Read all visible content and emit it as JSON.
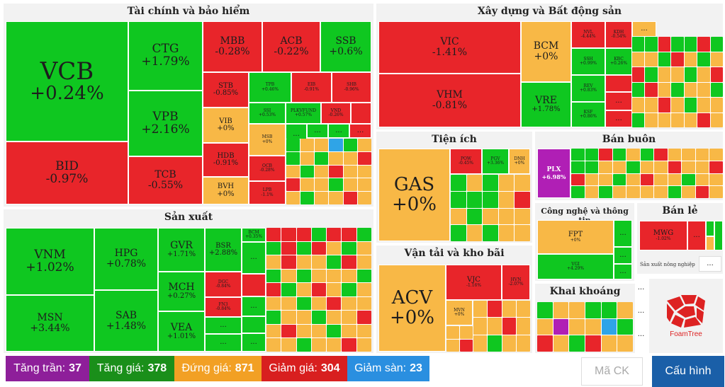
{
  "sectors": {
    "finance": {
      "title": "Tài chính và bảo hiểm",
      "vcb": {
        "t": "VCB",
        "v": "+0.24%"
      },
      "bid": {
        "t": "BID",
        "v": "-0.97%"
      },
      "ctg": {
        "t": "CTG",
        "v": "+1.79%"
      },
      "vpb": {
        "t": "VPB",
        "v": "+2.16%"
      },
      "tcb": {
        "t": "TCB",
        "v": "-0.55%"
      },
      "mbb": {
        "t": "MBB",
        "v": "-0.28%"
      },
      "acb": {
        "t": "ACB",
        "v": "-0.22%"
      },
      "ssb": {
        "t": "SSB",
        "v": "+0.6%"
      },
      "stb": {
        "t": "STB",
        "v": "-0.85%"
      },
      "tpb": {
        "t": "TPB",
        "v": "+0.46%"
      },
      "eib": {
        "t": "EIB",
        "v": "-0.91%"
      },
      "shb": {
        "t": "SHB",
        "v": "-0.96%"
      },
      "vib": {
        "t": "VIB",
        "v": "+0%"
      },
      "ssi": {
        "t": "SSI",
        "v": "+0.53%"
      },
      "pvfc": {
        "t": "PLKVFUND",
        "v": "+0.57%"
      },
      "vnd": {
        "t": "VND",
        "v": "-0.26%"
      },
      "hdb": {
        "t": "HDB",
        "v": "-0.91%"
      },
      "bvh": {
        "t": "BVH",
        "v": "+0%"
      },
      "msb": {
        "t": "MSB",
        "v": "+0%"
      },
      "ocb": {
        "t": "OCB",
        "v": "-0.28%"
      },
      "lpb": {
        "t": "LPB",
        "v": "-1.1%"
      }
    },
    "realestate": {
      "title": "Xây dựng và Bất động sản",
      "vic": {
        "t": "VIC",
        "v": "-1.41%"
      },
      "vhm": {
        "t": "VHM",
        "v": "-0.81%"
      },
      "bcm": {
        "t": "BCM",
        "v": "+0%"
      },
      "vre": {
        "t": "VRE",
        "v": "+1.78%"
      },
      "nvl": {
        "t": "NVL",
        "v": "-4.44%"
      },
      "kdh": {
        "t": "KDH",
        "v": "-0.54%"
      },
      "ssh": {
        "t": "SSH",
        "v": "+0.99%"
      },
      "kbc": {
        "t": "KBC",
        "v": "+0.26%"
      },
      "rev": {
        "t": "REV",
        "v": "+0.83%"
      },
      "ksf": {
        "t": "KSF",
        "v": "+0.86%"
      }
    },
    "utilities": {
      "title": "Tiện ích",
      "gas": {
        "t": "GAS",
        "v": "+0%"
      },
      "pow": {
        "t": "POW",
        "v": "-0.45%"
      },
      "pgv": {
        "t": "PGV",
        "v": "+3.36%"
      },
      "dnh": {
        "t": "DNH",
        "v": "+0%"
      }
    },
    "wholesale": {
      "title": "Bán buôn",
      "plx": {
        "t": "PLX",
        "v": "+6.98%"
      }
    },
    "manufacturing": {
      "title": "Sản xuất",
      "vnm": {
        "t": "VNM",
        "v": "+1.02%"
      },
      "msn": {
        "t": "MSN",
        "v": "+3.44%"
      },
      "hpg": {
        "t": "HPG",
        "v": "+0.78%"
      },
      "sab": {
        "t": "SAB",
        "v": "+1.48%"
      },
      "gvr": {
        "t": "GVR",
        "v": "+1.71%"
      },
      "mch": {
        "t": "MCH",
        "v": "+0.27%"
      },
      "vea": {
        "t": "VEA",
        "v": "+1.01%"
      },
      "bsr": {
        "t": "BSR",
        "v": "+2.88%"
      },
      "dgc": {
        "t": "DGC",
        "v": "-0.84%"
      },
      "fpt2": {
        "t": "FN3",
        "v": "-0.84%"
      },
      "bcm2": {
        "t": "BCM",
        "v": "+0.35%"
      }
    },
    "tech": {
      "title": "Công nghệ và thông tin",
      "fpt": {
        "t": "FPT",
        "v": "+0%"
      },
      "vgi": {
        "t": "VGI",
        "v": "+4.29%"
      }
    },
    "retail": {
      "title": "Bán lẻ",
      "mwg": {
        "t": "MWG",
        "v": "-1.02%"
      },
      "agri": "Sản xuất nông nghiệp"
    },
    "transport": {
      "title": "Vận tải và kho bãi",
      "acv": {
        "t": "ACV",
        "v": "+0%"
      },
      "vjc": {
        "t": "VJC",
        "v": "-1.16%"
      },
      "hvn": {
        "t": "HVN",
        "v": "-2.07%"
      },
      "mvn": {
        "t": "MVN",
        "v": "+0%"
      }
    },
    "mining": {
      "title": "Khai khoáng"
    }
  },
  "more": "...",
  "logo": "FoamTree",
  "legend": {
    "ceiling": {
      "label": "Tăng trần:",
      "count": "37",
      "color": "#8e1f9a"
    },
    "up": {
      "label": "Tăng giá:",
      "count": "378",
      "color": "#1a8f1a"
    },
    "flat": {
      "label": "Đứng giá:",
      "count": "871",
      "color": "#f2a024"
    },
    "down": {
      "label": "Giảm giá:",
      "count": "304",
      "color": "#d81f1f"
    },
    "floor": {
      "label": "Giảm sàn:",
      "count": "23",
      "color": "#2a8fe0"
    }
  },
  "search": {
    "placeholder": "Mã CK"
  },
  "config_button": "Cấu hình"
}
